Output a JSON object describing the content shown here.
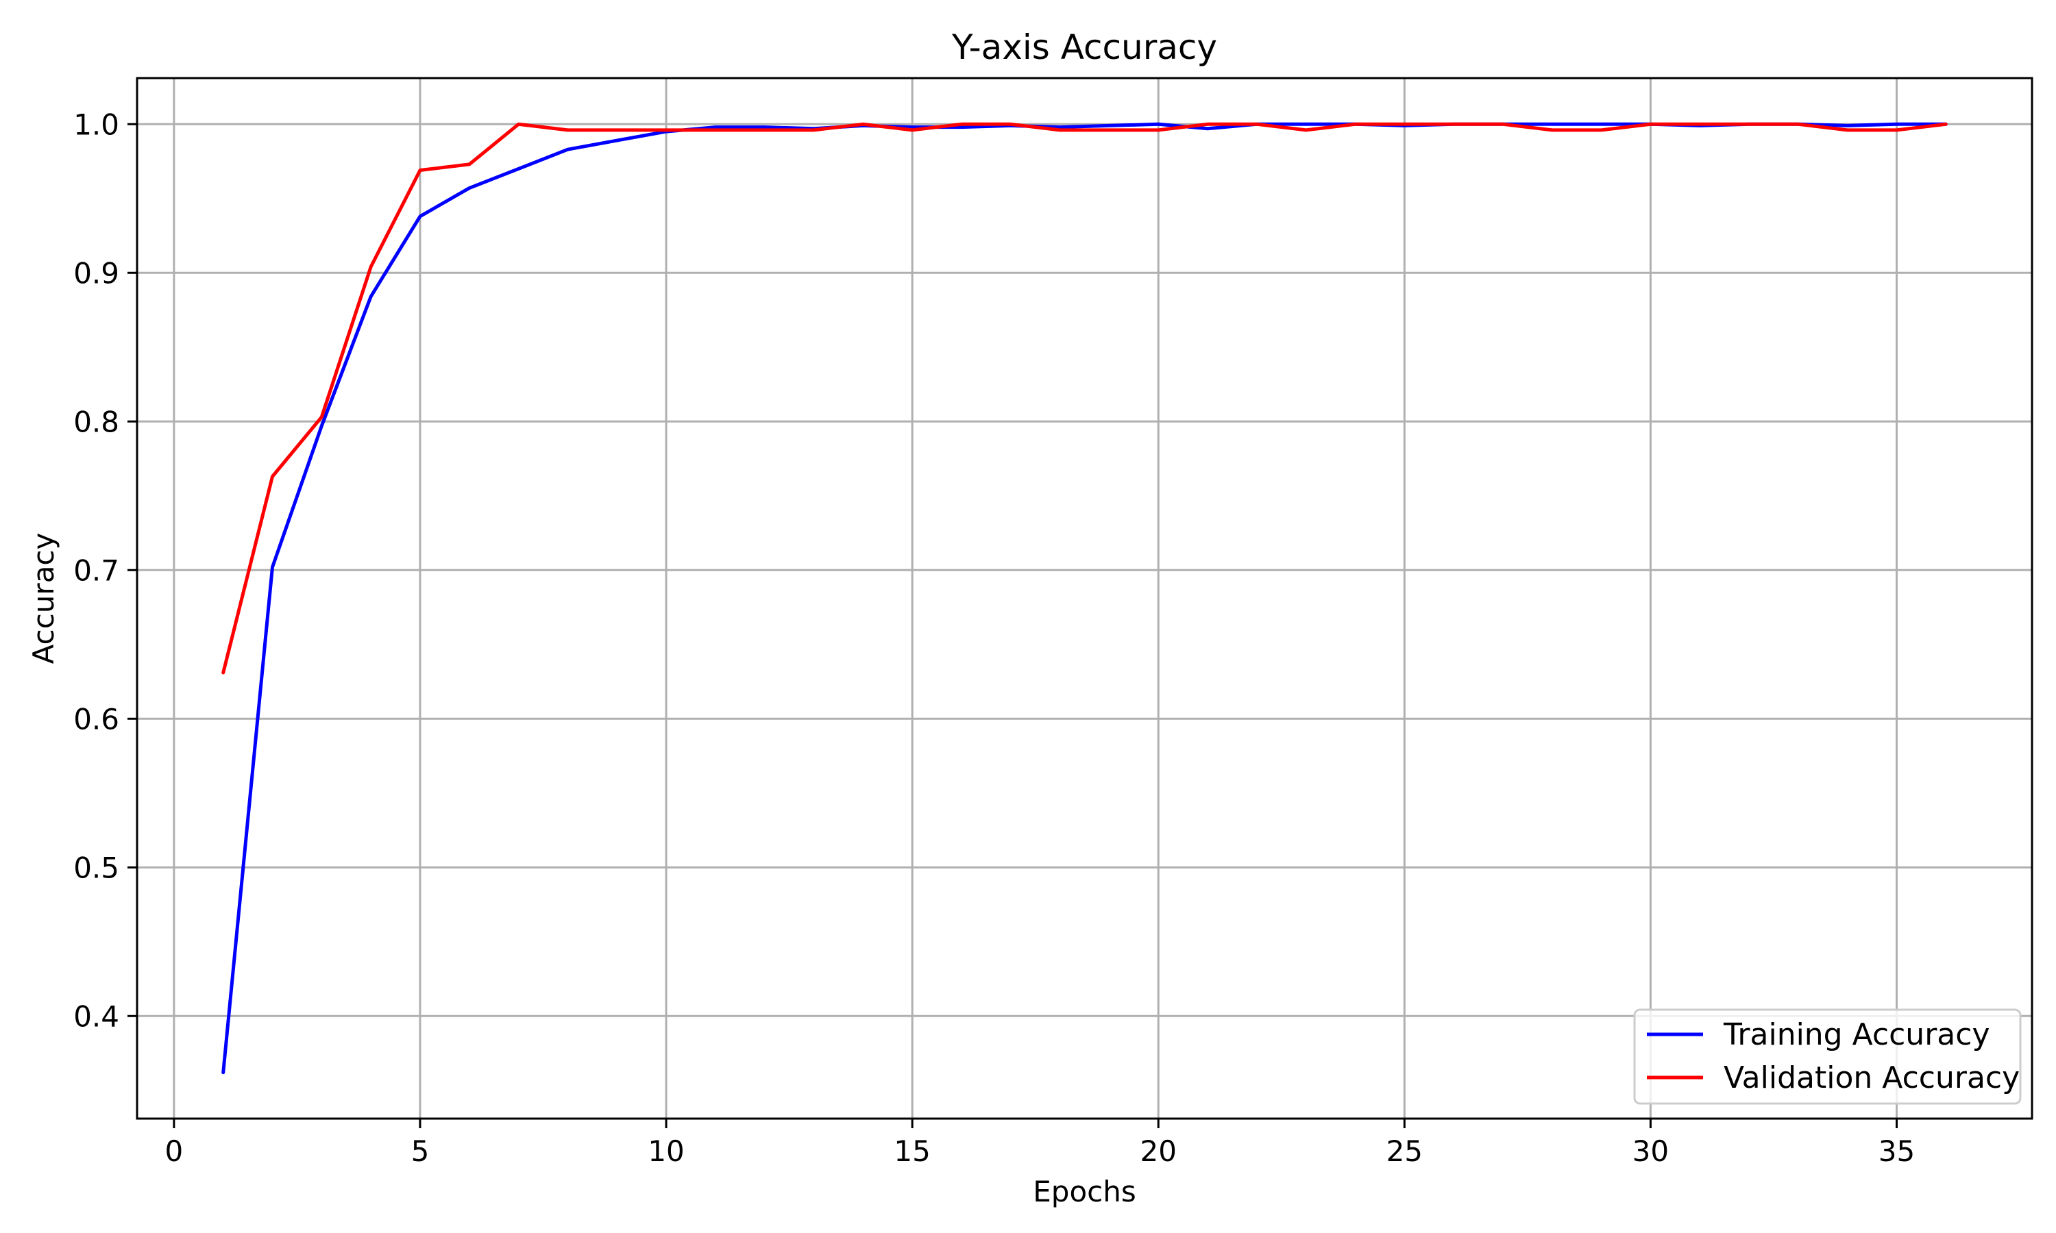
{
  "chart_data": {
    "type": "line",
    "title": "Y-axis Accuracy",
    "xlabel": "Epochs",
    "ylabel": "Accuracy",
    "xlim": [
      -0.75,
      37.75
    ],
    "ylim": [
      0.331,
      1.031
    ],
    "xticks": [
      0,
      5,
      10,
      15,
      20,
      25,
      30,
      35
    ],
    "xtick_labels": [
      "0",
      "5",
      "10",
      "15",
      "20",
      "25",
      "30",
      "35"
    ],
    "yticks": [
      0.4,
      0.5,
      0.6,
      0.7,
      0.8,
      0.9,
      1.0
    ],
    "ytick_labels": [
      "0.4",
      "0.5",
      "0.6",
      "0.7",
      "0.8",
      "0.9",
      "1.0"
    ],
    "grid": true,
    "legend_position": "lower-right",
    "x": [
      1,
      2,
      3,
      4,
      5,
      6,
      7,
      8,
      9,
      10,
      11,
      12,
      13,
      14,
      15,
      16,
      17,
      18,
      19,
      20,
      21,
      22,
      23,
      24,
      25,
      26,
      27,
      28,
      29,
      30,
      31,
      32,
      33,
      34,
      35,
      36
    ],
    "series": [
      {
        "name": "Training Accuracy",
        "color": "#0000ff",
        "values": [
          0.362,
          0.702,
          0.797,
          0.884,
          0.938,
          0.957,
          0.97,
          0.983,
          0.989,
          0.995,
          0.998,
          0.998,
          0.997,
          0.999,
          0.998,
          0.998,
          0.999,
          0.998,
          0.999,
          1.0,
          0.997,
          1.0,
          1.0,
          1.0,
          0.999,
          1.0,
          1.0,
          1.0,
          1.0,
          1.0,
          0.999,
          1.0,
          1.0,
          0.999,
          1.0,
          1.0
        ]
      },
      {
        "name": "Validation Accuracy",
        "color": "#ff0000",
        "values": [
          0.631,
          0.763,
          0.803,
          0.904,
          0.969,
          0.973,
          1.0,
          0.996,
          0.996,
          0.996,
          0.996,
          0.996,
          0.996,
          1.0,
          0.996,
          1.0,
          1.0,
          0.996,
          0.996,
          0.996,
          1.0,
          1.0,
          0.996,
          1.0,
          1.0,
          1.0,
          1.0,
          0.996,
          0.996,
          1.0,
          1.0,
          1.0,
          1.0,
          0.996,
          0.996,
          1.0
        ]
      }
    ]
  }
}
